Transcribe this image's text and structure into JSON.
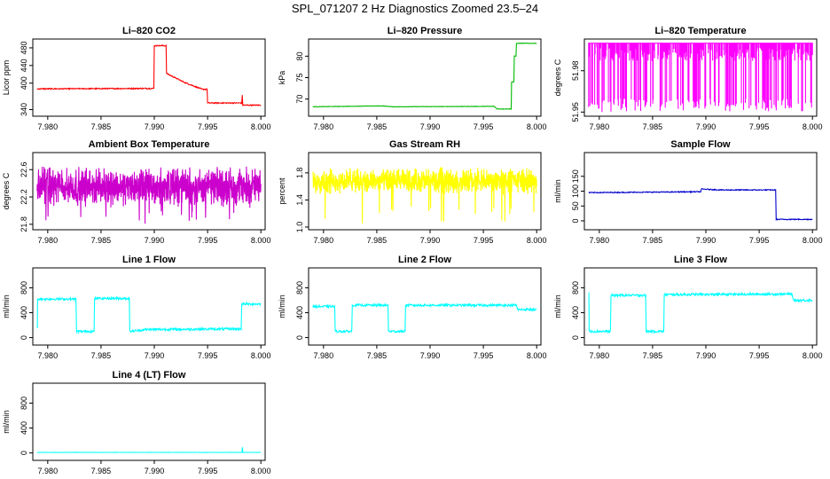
{
  "figure": {
    "title": "SPL_071207  2 Hz Diagnostics Zoomed 23.5–24"
  },
  "chart_data": [
    {
      "id": "co2",
      "type": "line",
      "title": "Li–820 CO2",
      "ylabel": "Licor ppm",
      "color": "#ff0000",
      "xlim": [
        7.9786,
        8.0004
      ],
      "ylim": [
        325,
        500
      ],
      "xticks": [
        7.98,
        7.985,
        7.99,
        7.995,
        8.0
      ],
      "xticklabels": [
        "7.980",
        "7.985",
        "7.990",
        "7.995",
        "8.000"
      ],
      "yticks": [
        340,
        400,
        440,
        480
      ],
      "yticklabels": [
        "340",
        "400",
        "440",
        "480"
      ],
      "noise": 1.2,
      "steps": [
        [
          7.979,
          387
        ],
        [
          7.9897,
          388
        ],
        [
          7.99,
          485
        ],
        [
          7.99115,
          422
        ],
        [
          7.9928,
          402
        ],
        [
          7.9945,
          386
        ],
        [
          7.995,
          355
        ],
        [
          7.9982,
          355
        ],
        [
          7.99825,
          372
        ],
        [
          7.9983,
          350
        ],
        [
          7.999,
          350
        ],
        [
          8.0,
          350
        ]
      ]
    },
    {
      "id": "pressure",
      "type": "line",
      "title": "Li–820 Pressure",
      "ylabel": "kPa",
      "color": "#00bb00",
      "xlim": [
        7.9786,
        8.0004
      ],
      "ylim": [
        66,
        84
      ],
      "xticks": [
        7.98,
        7.985,
        7.99,
        7.995,
        8.0
      ],
      "xticklabels": [
        "7.980",
        "7.985",
        "7.990",
        "7.995",
        "8.000"
      ],
      "yticks": [
        70,
        75,
        80
      ],
      "yticklabels": [
        "70",
        "75",
        "80"
      ],
      "noise": 0.05,
      "steps": [
        [
          7.979,
          68.2
        ],
        [
          7.9855,
          68.4
        ],
        [
          7.9865,
          68.2
        ],
        [
          7.996,
          68.3
        ],
        [
          7.9963,
          67.7
        ],
        [
          7.9975,
          67.7
        ],
        [
          7.99765,
          74
        ],
        [
          7.9979,
          80
        ],
        [
          7.9981,
          83
        ],
        [
          8.0,
          83
        ]
      ]
    },
    {
      "id": "licor_temp",
      "type": "line",
      "title": "Li–820 Temperature",
      "ylabel": "degrees C",
      "color": "#ff00ff",
      "xlim": [
        7.9786,
        8.0004
      ],
      "ylim": [
        51.947,
        52.003
      ],
      "xticks": [
        7.98,
        7.985,
        7.99,
        7.995,
        8.0
      ],
      "xticklabels": [
        "7.980",
        "7.985",
        "7.990",
        "7.995",
        "8.000"
      ],
      "yticks": [
        51.95,
        51.98
      ],
      "yticklabels": [
        "51.95",
        "51.98"
      ],
      "mode": "flat_spikes",
      "level": 52.0,
      "spike_to": 51.95,
      "spike_prob": 0.06
    },
    {
      "id": "ambient_temp",
      "type": "line",
      "title": "Ambient Box Temperature",
      "ylabel": "degrees C",
      "color": "#cc00cc",
      "xlim": [
        7.9786,
        8.0004
      ],
      "ylim": [
        21.72,
        22.85
      ],
      "xticks": [
        7.98,
        7.985,
        7.99,
        7.995,
        8.0
      ],
      "xticklabels": [
        "7.980",
        "7.985",
        "7.990",
        "7.995",
        "8.000"
      ],
      "yticks": [
        21.8,
        22.2,
        22.6
      ],
      "yticklabels": [
        "21.8",
        "22.2",
        "22.6"
      ],
      "mode": "noise",
      "mean": 22.35,
      "spread": 0.18,
      "dip_to": 21.8,
      "dip_prob": 0.02
    },
    {
      "id": "rh",
      "type": "line",
      "title": "Gas Stream RH",
      "ylabel": "percent",
      "color": "#ffff00",
      "xlim": [
        7.9786,
        8.0004
      ],
      "ylim": [
        0.96,
        2.1
      ],
      "xticks": [
        7.98,
        7.985,
        7.99,
        7.995,
        8.0
      ],
      "xticklabels": [
        "7.980",
        "7.985",
        "7.990",
        "7.995",
        "8.000"
      ],
      "yticks": [
        1.0,
        1.4,
        1.8
      ],
      "yticklabels": [
        "1.0",
        "1.4",
        "1.8"
      ],
      "mode": "noise",
      "mean": 1.68,
      "spread": 0.12,
      "dip_to": 1.05,
      "dip_prob": 0.02
    },
    {
      "id": "sample_flow",
      "type": "line",
      "title": "Sample Flow",
      "ylabel": "ml/min",
      "color": "#0000cc",
      "xlim": [
        7.9786,
        8.0004
      ],
      "ylim": [
        -30,
        230
      ],
      "xticks": [
        7.98,
        7.985,
        7.99,
        7.995,
        8.0
      ],
      "xticklabels": [
        "7.980",
        "7.985",
        "7.990",
        "7.995",
        "8.000"
      ],
      "yticks": [
        0,
        50,
        100,
        150
      ],
      "yticklabels": [
        "0",
        "50",
        "100",
        "150"
      ],
      "noise": 1.5,
      "steps": [
        [
          7.979,
          95
        ],
        [
          7.9895,
          98
        ],
        [
          7.9896,
          107
        ],
        [
          7.9915,
          104
        ],
        [
          7.9965,
          104
        ],
        [
          7.9966,
          5
        ],
        [
          8.0,
          5
        ]
      ]
    },
    {
      "id": "line1_flow",
      "type": "line",
      "title": "Line 1 Flow",
      "ylabel": "ml/min",
      "color": "#00ffff",
      "xlim": [
        7.9786,
        8.0004
      ],
      "ylim": [
        -120,
        1120
      ],
      "xticks": [
        7.98,
        7.985,
        7.99,
        7.995,
        8.0
      ],
      "xticklabels": [
        "7.980",
        "7.985",
        "7.990",
        "7.995",
        "8.000"
      ],
      "yticks": [
        0,
        400,
        800
      ],
      "yticklabels": [
        "0",
        "400",
        "800"
      ],
      "noise": 18,
      "steps": [
        [
          7.979,
          150
        ],
        [
          7.97905,
          620
        ],
        [
          7.9826,
          620
        ],
        [
          7.9827,
          100
        ],
        [
          7.9843,
          100
        ],
        [
          7.9844,
          630
        ],
        [
          7.9876,
          630
        ],
        [
          7.9877,
          100
        ],
        [
          7.9893,
          130
        ],
        [
          7.9981,
          140
        ],
        [
          7.9982,
          540
        ],
        [
          8.0,
          540
        ]
      ]
    },
    {
      "id": "line2_flow",
      "type": "line",
      "title": "Line 2 Flow",
      "ylabel": "ml/min",
      "color": "#00ffff",
      "xlim": [
        7.9786,
        8.0004
      ],
      "ylim": [
        -120,
        1120
      ],
      "xticks": [
        7.98,
        7.985,
        7.99,
        7.995,
        8.0
      ],
      "xticklabels": [
        "7.980",
        "7.985",
        "7.990",
        "7.995",
        "8.000"
      ],
      "yticks": [
        0,
        400,
        800
      ],
      "yticklabels": [
        "0",
        "400",
        "800"
      ],
      "noise": 18,
      "steps": [
        [
          7.979,
          500
        ],
        [
          7.981,
          500
        ],
        [
          7.9811,
          100
        ],
        [
          7.9826,
          100
        ],
        [
          7.9827,
          520
        ],
        [
          7.986,
          520
        ],
        [
          7.9861,
          100
        ],
        [
          7.9876,
          100
        ],
        [
          7.9877,
          520
        ],
        [
          7.9981,
          520
        ],
        [
          7.9982,
          450
        ],
        [
          8.0,
          450
        ]
      ]
    },
    {
      "id": "line3_flow",
      "type": "line",
      "title": "Line 3 Flow",
      "ylabel": "ml/min",
      "color": "#00ffff",
      "xlim": [
        7.9786,
        8.0004
      ],
      "ylim": [
        -120,
        1120
      ],
      "xticks": [
        7.98,
        7.985,
        7.99,
        7.995,
        8.0
      ],
      "xticklabels": [
        "7.980",
        "7.985",
        "7.990",
        "7.995",
        "8.000"
      ],
      "yticks": [
        0,
        400,
        800
      ],
      "yticklabels": [
        "0",
        "400",
        "800"
      ],
      "noise": 18,
      "steps": [
        [
          7.979,
          700
        ],
        [
          7.97905,
          100
        ],
        [
          7.981,
          100
        ],
        [
          7.9811,
          680
        ],
        [
          7.9843,
          680
        ],
        [
          7.9844,
          100
        ],
        [
          7.986,
          100
        ],
        [
          7.9861,
          690
        ],
        [
          7.9981,
          700
        ],
        [
          7.9982,
          600
        ],
        [
          8.0,
          600
        ]
      ]
    },
    {
      "id": "line4_flow",
      "type": "line",
      "title": "Line 4 (LT) Flow",
      "ylabel": "ml/min",
      "color": "#00ffff",
      "xlim": [
        7.9786,
        8.0004
      ],
      "ylim": [
        -120,
        1120
      ],
      "xticks": [
        7.98,
        7.985,
        7.99,
        7.995,
        8.0
      ],
      "xticklabels": [
        "7.980",
        "7.985",
        "7.990",
        "7.995",
        "8.000"
      ],
      "yticks": [
        0,
        400,
        800
      ],
      "yticklabels": [
        "0",
        "400",
        "800"
      ],
      "noise": 2,
      "steps": [
        [
          7.979,
          8
        ],
        [
          7.9982,
          8
        ],
        [
          7.99825,
          80
        ],
        [
          7.9983,
          8
        ],
        [
          8.0,
          8
        ]
      ]
    }
  ]
}
